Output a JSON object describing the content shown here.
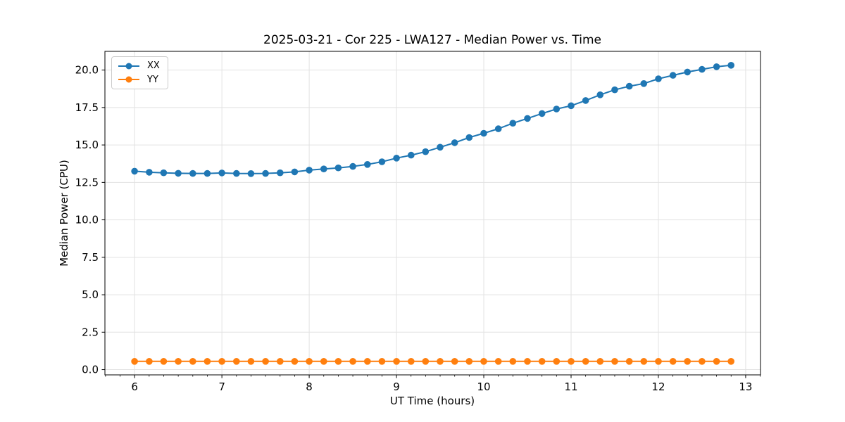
{
  "chart_data": {
    "type": "line",
    "title": "2025-03-21 - Cor 225 - LWA127 - Median Power vs. Time",
    "xlabel": "UT Time (hours)",
    "ylabel": "Median Power (CPU)",
    "legend_position": "upper left",
    "grid": true,
    "marker": "o",
    "xlim": [
      5.66,
      13.17
    ],
    "ylim": [
      -0.35,
      21.25
    ],
    "xticks": [
      6,
      7,
      8,
      9,
      10,
      11,
      12,
      13
    ],
    "yticks": [
      0.0,
      2.5,
      5.0,
      7.5,
      10.0,
      12.5,
      15.0,
      17.5,
      20.0
    ],
    "x_minor_per_major": 6,
    "x": [
      6.0,
      6.167,
      6.333,
      6.5,
      6.667,
      6.833,
      7.0,
      7.167,
      7.333,
      7.5,
      7.667,
      7.833,
      8.0,
      8.167,
      8.333,
      8.5,
      8.667,
      8.833,
      9.0,
      9.167,
      9.333,
      9.5,
      9.667,
      9.833,
      10.0,
      10.167,
      10.333,
      10.5,
      10.667,
      10.833,
      11.0,
      11.167,
      11.333,
      11.5,
      11.667,
      11.833,
      12.0,
      12.167,
      12.333,
      12.5,
      12.667,
      12.833
    ],
    "series": [
      {
        "name": "XX",
        "color": "#1f77b4",
        "values": [
          13.25,
          13.18,
          13.14,
          13.11,
          13.1,
          13.1,
          13.13,
          13.1,
          13.09,
          13.1,
          13.14,
          13.2,
          13.32,
          13.4,
          13.47,
          13.57,
          13.7,
          13.88,
          14.12,
          14.32,
          14.55,
          14.85,
          15.15,
          15.5,
          15.78,
          16.08,
          16.45,
          16.77,
          17.1,
          17.4,
          17.62,
          17.97,
          18.35,
          18.68,
          18.92,
          19.1,
          19.42,
          19.65,
          19.87,
          20.05,
          20.22,
          20.32
        ]
      },
      {
        "name": "YY",
        "color": "#ff7f0e",
        "values": [
          0.55,
          0.55,
          0.55,
          0.55,
          0.55,
          0.55,
          0.55,
          0.55,
          0.55,
          0.55,
          0.55,
          0.55,
          0.55,
          0.55,
          0.55,
          0.55,
          0.55,
          0.55,
          0.55,
          0.55,
          0.55,
          0.55,
          0.55,
          0.55,
          0.55,
          0.55,
          0.55,
          0.55,
          0.55,
          0.55,
          0.55,
          0.55,
          0.55,
          0.55,
          0.55,
          0.55,
          0.55,
          0.55,
          0.55,
          0.55,
          0.55,
          0.55
        ]
      }
    ],
    "colors": {
      "grid": "#e2e2e2",
      "spine": "#000000",
      "text": "#000000",
      "background": "#ffffff"
    }
  }
}
